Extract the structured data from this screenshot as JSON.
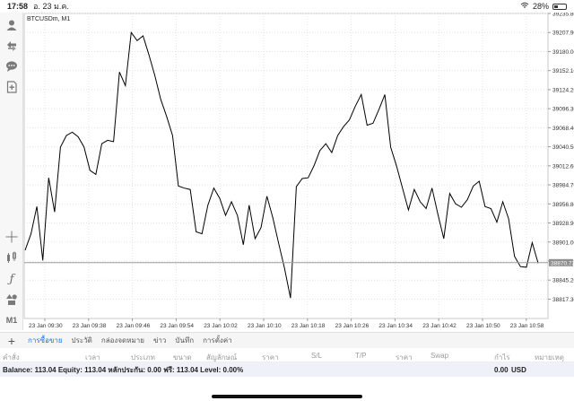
{
  "statusbar": {
    "time": "17:58",
    "date": "อ. 23 ม.ค.",
    "battery": "28%",
    "battery_level": 0.28
  },
  "chart": {
    "symbol_label": "BTCUSDm, M1",
    "current_price": "38870.73"
  },
  "chart_data": {
    "type": "line",
    "title": "",
    "ylim": [
      38789.0,
      39235.8
    ],
    "y_ticks": [
      "39235.80",
      "39207.90",
      "39180.00",
      "39152.10",
      "39124.20",
      "39096.30",
      "39068.40",
      "39040.50",
      "39012.60",
      "38984.70",
      "38956.80",
      "38928.90",
      "38901.00",
      "38873.10",
      "38845.20",
      "38817.30"
    ],
    "x_ticks": [
      "23 Jan 09:30",
      "23 Jan 09:38",
      "23 Jan 09:46",
      "23 Jan 09:54",
      "23 Jan 10:02",
      "23 Jan 10:10",
      "23 Jan 10:18",
      "23 Jan 10:26",
      "23 Jan 10:34",
      "23 Jan 10:42",
      "23 Jan 10:50",
      "23 Jan 10:58"
    ],
    "current_price": 38870.73,
    "series": [
      {
        "values": [
          38889,
          38913,
          38953,
          38874,
          38995,
          38945,
          39040,
          39057,
          39062,
          39055,
          39040,
          39006,
          39000,
          39045,
          39050,
          39048,
          39150,
          39130,
          39208,
          39196,
          39203,
          39175,
          39145,
          39110,
          39085,
          39057,
          38983,
          38980,
          38978,
          38916,
          38913,
          38955,
          38980,
          38965,
          38940,
          38960,
          38940,
          38897,
          38955,
          38906,
          38922,
          38968,
          38937,
          38899,
          38862,
          38819,
          38982,
          38994,
          38995,
          39013,
          39035,
          39045,
          39032,
          39057,
          39070,
          39080,
          39100,
          39117,
          39072,
          39075,
          39095,
          39117,
          39040,
          39012,
          38980,
          38948,
          38978,
          38960,
          38950,
          38980,
          38942,
          38906,
          38972,
          38957,
          38952,
          38963,
          38983,
          38990,
          38953,
          38950,
          38930,
          38960,
          38935,
          38880,
          38865,
          38864,
          38900,
          38870
        ]
      }
    ]
  },
  "toolbar": {
    "icons": [
      "person-icon",
      "trade-arrows-icon",
      "chat-icon",
      "add-document-icon",
      "crosshair-icon",
      "indicator-icon",
      "function-icon",
      "objects-icon"
    ],
    "timeframe": "M1"
  },
  "tabs": [
    "การซื้อขาย",
    "ประวัติ",
    "กล่องจดหมาย",
    "ข่าว",
    "บันทึก",
    "การตั้งค่า"
  ],
  "columns": [
    "คำสั่ง",
    "เวลา",
    "ประเภท",
    "ขนาด",
    "สัญลักษณ์",
    "ราคา",
    "S/L",
    "T/P",
    "ราคา",
    "Swap",
    "กำไร",
    "หมายเหตุ"
  ],
  "balance": {
    "text": "Balance: 113.04 Equity: 113.04 หลักประกัน: 0.00 ฟรี: 113.04 Level: 0.00%",
    "profit": "0.00",
    "currency": "USD"
  },
  "colors": {
    "accent": "#1a73e8",
    "line": "#000000",
    "grid": "#e3e3e3"
  }
}
